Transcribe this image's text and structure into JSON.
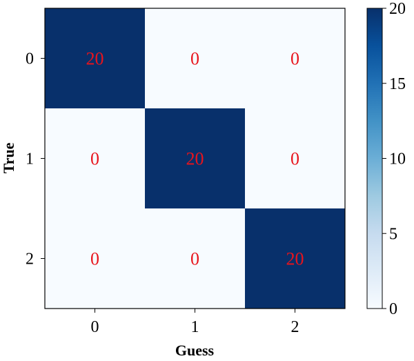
{
  "chart_data": {
    "type": "heatmap",
    "title": "",
    "xlabel": "Guess",
    "ylabel": "True",
    "x_categories": [
      "0",
      "1",
      "2"
    ],
    "y_categories": [
      "0",
      "1",
      "2"
    ],
    "matrix": [
      [
        20,
        0,
        0
      ],
      [
        0,
        20,
        0
      ],
      [
        0,
        0,
        20
      ]
    ],
    "colorbar": {
      "min": 0,
      "max": 20,
      "ticks": [
        0,
        5,
        10,
        15,
        20
      ],
      "colormap": "Blues",
      "low_color": "#f7fbff",
      "high_color": "#08306b"
    },
    "annotation_color": "#e8141c",
    "grid": false
  }
}
